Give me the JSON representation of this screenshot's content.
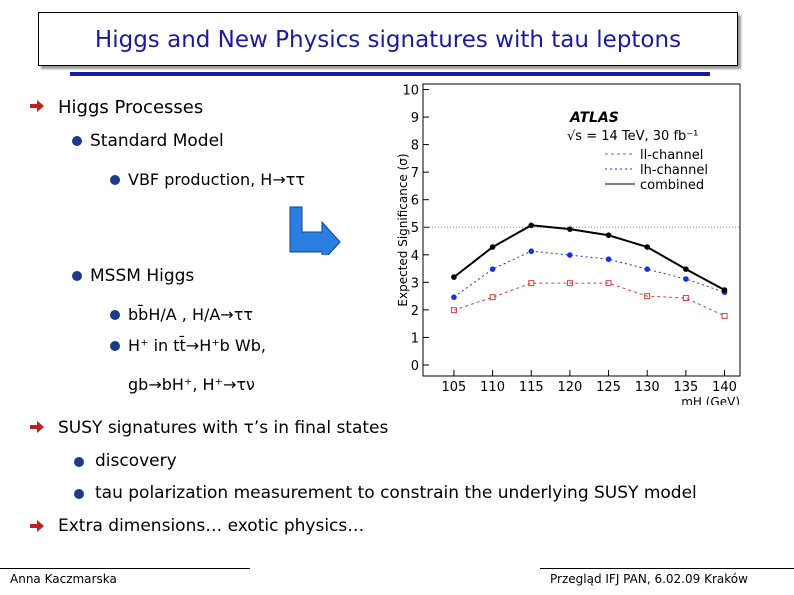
{
  "header": {
    "title": "Higgs and New Physics signatures with tau leptons"
  },
  "items": [
    {
      "text": "Higgs Processes"
    },
    {
      "text": "Standard Model"
    },
    {
      "text": "VBF production, H→ττ"
    },
    {
      "text": "MSSM Higgs"
    },
    {
      "text": "bb̄H/A , H/A→ττ"
    },
    {
      "text": "H⁺ in tt̄→H⁺b Wb,"
    },
    {
      "text": "gb→bH⁺, H⁺→τν"
    },
    {
      "text": "SUSY signatures with τ’s in final states"
    },
    {
      "text": "discovery"
    },
    {
      "text": "tau polarization measurement to constrain the underlying SUSY model"
    },
    {
      "text": "Extra dimensions… exotic physics…"
    }
  ],
  "footer": {
    "author": "Anna Kaczmarska",
    "event": "Przegląd IFJ PAN, 6.02.09 Kraków"
  },
  "chart_data": {
    "type": "line",
    "title": "ATLAS",
    "subtitle": "√s = 14 TeV, 30 fb⁻¹",
    "y_label": "Expected Significance (σ)",
    "x_label": "mH (GeV)",
    "x": [
      105,
      110,
      115,
      120,
      125,
      130,
      135,
      140
    ],
    "xlim": [
      101,
      142
    ],
    "xticks": [
      105,
      110,
      115,
      120,
      125,
      130,
      135,
      140
    ],
    "ylim": [
      -0.4,
      10.2
    ],
    "yticks": [
      0,
      1,
      2,
      3,
      4,
      5,
      6,
      7,
      8,
      9,
      10
    ],
    "reference_line": 5,
    "series": [
      {
        "name": "ll-channel",
        "color": "#d04040",
        "values": [
          1.99,
          2.46,
          2.97,
          2.97,
          2.97,
          2.5,
          2.43,
          1.78
        ]
      },
      {
        "name": "lh-channel",
        "color": "#1a30e0",
        "values": [
          2.46,
          3.48,
          4.13,
          3.99,
          3.84,
          3.48,
          3.12,
          2.64
        ]
      },
      {
        "name": "combined",
        "color": "#000000",
        "values": [
          3.19,
          4.28,
          5.07,
          4.93,
          4.71,
          4.28,
          3.48,
          2.72
        ]
      }
    ]
  }
}
